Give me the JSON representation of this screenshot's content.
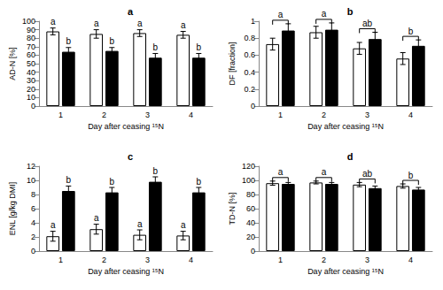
{
  "chart_data": [
    {
      "type": "bar",
      "title": "a",
      "x_label": "Day after ceasing ¹⁵N",
      "y_label": "AD-N [%]",
      "categories": [
        "1",
        "2",
        "3",
        "4"
      ],
      "series": [
        {
          "color": "#ffffff",
          "values": [
            88,
            85,
            86,
            84
          ],
          "errors": [
            4,
            5,
            4,
            4
          ],
          "letters": [
            "a",
            "a",
            "a",
            "a"
          ]
        },
        {
          "color": "#000000",
          "values": [
            64,
            65,
            57,
            57
          ],
          "errors": [
            5,
            4,
            5,
            5
          ],
          "letters": [
            "b",
            "b",
            "b",
            "b"
          ]
        }
      ],
      "ylim": [
        0,
        100
      ],
      "yticks": [
        0,
        10,
        20,
        30,
        40,
        50,
        60,
        70,
        80,
        90,
        100
      ],
      "grid": false
    },
    {
      "type": "bar",
      "title": "b",
      "x_label": "Day after ceasing ¹⁵N",
      "y_label": "DF [fraction]",
      "categories": [
        "1",
        "2",
        "3",
        "4"
      ],
      "series": [
        {
          "color": "#ffffff",
          "values": [
            0.73,
            0.87,
            0.68,
            0.56
          ],
          "errors": [
            0.07,
            0.07,
            0.07,
            0.07
          ]
        },
        {
          "color": "#000000",
          "values": [
            0.89,
            0.9,
            0.79,
            0.71
          ],
          "errors": [
            0.08,
            0.08,
            0.08,
            0.07
          ]
        }
      ],
      "group_letters": [
        "a",
        "a",
        "ab",
        "b"
      ],
      "ylim": [
        0,
        1
      ],
      "yticks": [
        0,
        0.2,
        0.4,
        0.6,
        0.8,
        1
      ],
      "grid": false
    },
    {
      "type": "bar",
      "title": "c",
      "x_label": "Day after ceasing ¹⁵N",
      "y_label": "ENL [g/kg DMI]",
      "categories": [
        "1",
        "2",
        "3",
        "4"
      ],
      "series": [
        {
          "color": "#ffffff",
          "values": [
            2.1,
            3.1,
            2.3,
            2.2
          ],
          "errors": [
            0.7,
            0.7,
            0.7,
            0.6
          ],
          "letters": [
            "a",
            "a",
            "a",
            "a"
          ]
        },
        {
          "color": "#000000",
          "values": [
            8.5,
            8.3,
            9.8,
            8.3
          ],
          "errors": [
            0.7,
            0.7,
            0.7,
            0.7
          ],
          "letters": [
            "b",
            "b",
            "b",
            "b"
          ]
        }
      ],
      "ylim": [
        0,
        12
      ],
      "yticks": [
        0,
        2,
        4,
        6,
        8,
        10,
        12
      ],
      "grid": false
    },
    {
      "type": "bar",
      "title": "d",
      "x_label": "Day after ceasing ¹⁵N",
      "y_label": "TD-N [%]",
      "categories": [
        "1",
        "2",
        "3",
        "4"
      ],
      "series": [
        {
          "color": "#ffffff",
          "values": [
            96,
            97,
            94,
            92
          ],
          "errors": [
            3,
            2,
            3,
            3
          ],
          "letters": null
        },
        {
          "color": "#000000",
          "values": [
            95,
            95,
            89,
            87
          ],
          "errors": [
            2,
            2,
            3,
            3
          ],
          "letters": null
        }
      ],
      "group_letters": [
        "a",
        "a",
        "ab",
        "b"
      ],
      "ylim": [
        0,
        120
      ],
      "yticks": [
        0,
        20,
        40,
        60,
        80,
        100,
        120
      ],
      "grid": false
    }
  ]
}
